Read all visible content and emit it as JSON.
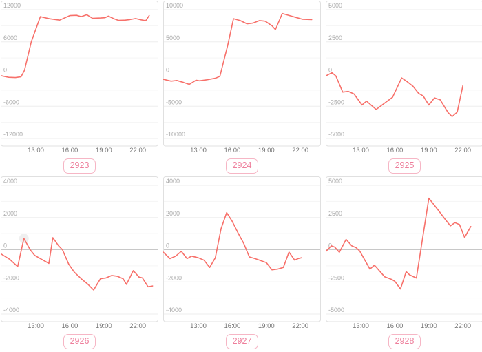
{
  "colors": {
    "line": "#f7706a",
    "panel_border": "#e0e0e0",
    "panel_bg": "#ffffff",
    "grid_major": "#ededed",
    "grid_minor": "#f5f5f5",
    "zero_line": "#c8c8c8",
    "y_label": "#a8a8a8",
    "x_label": "#757575",
    "badge_border": "#f6b6c5",
    "badge_text": "#ee7e9b",
    "marker_fill": "#dcdcdc"
  },
  "x_domain": [
    9.9,
    23.75
  ],
  "x_tick_hours": [
    13,
    16,
    19,
    22
  ],
  "x_ticks": [
    "13:00",
    "16:00",
    "19:00",
    "22:00"
  ],
  "chart_data": [
    {
      "type": "line",
      "badge": "2923",
      "ylim": [
        -12000,
        12000
      ],
      "yticks": [
        12000,
        6000,
        0,
        -6000,
        -12000
      ],
      "ytick_labels": [
        "12000",
        "6000",
        "0",
        "-6000",
        "-12000"
      ],
      "x_ticks": [
        "13:00",
        "16:00",
        "19:00",
        "22:00"
      ],
      "legend": "none",
      "grid": true,
      "points": [
        [
          9.9,
          -300
        ],
        [
          10.6,
          -600
        ],
        [
          11.2,
          -650
        ],
        [
          11.7,
          -500
        ],
        [
          12.0,
          700
        ],
        [
          12.6,
          6000
        ],
        [
          13.4,
          10700
        ],
        [
          14.2,
          10300
        ],
        [
          15.1,
          10050
        ],
        [
          16.0,
          10900
        ],
        [
          16.6,
          10950
        ],
        [
          17.0,
          10700
        ],
        [
          17.5,
          11050
        ],
        [
          18.0,
          10400
        ],
        [
          18.7,
          10450
        ],
        [
          19.1,
          10500
        ],
        [
          19.4,
          10800
        ],
        [
          19.9,
          10300
        ],
        [
          20.3,
          10000
        ],
        [
          20.9,
          10050
        ],
        [
          21.3,
          10150
        ],
        [
          21.8,
          10350
        ],
        [
          22.3,
          10100
        ],
        [
          22.7,
          9950
        ],
        [
          23.0,
          10900
        ]
      ]
    },
    {
      "type": "line",
      "badge": "2924",
      "ylim": [
        -10000,
        10000
      ],
      "yticks": [
        10000,
        5000,
        0,
        -5000,
        -10000
      ],
      "ytick_labels": [
        "10000",
        "5000",
        "0",
        "-5000",
        "-10000"
      ],
      "x_ticks": [
        "13:00",
        "16:00",
        "19:00",
        "22:00"
      ],
      "legend": "none",
      "grid": true,
      "points": [
        [
          9.9,
          -800
        ],
        [
          10.6,
          -1100
        ],
        [
          11.1,
          -1000
        ],
        [
          11.7,
          -1300
        ],
        [
          12.2,
          -1600
        ],
        [
          12.8,
          -950
        ],
        [
          13.1,
          -1050
        ],
        [
          13.7,
          -900
        ],
        [
          14.5,
          -650
        ],
        [
          14.9,
          -350
        ],
        [
          15.6,
          4500
        ],
        [
          16.1,
          8600
        ],
        [
          16.7,
          8300
        ],
        [
          17.3,
          7800
        ],
        [
          17.8,
          7900
        ],
        [
          18.4,
          8300
        ],
        [
          18.9,
          8200
        ],
        [
          19.5,
          7500
        ],
        [
          19.8,
          6900
        ],
        [
          20.4,
          9400
        ],
        [
          21.0,
          9100
        ],
        [
          21.6,
          8800
        ],
        [
          22.2,
          8500
        ],
        [
          23.0,
          8450
        ]
      ]
    },
    {
      "type": "line",
      "badge": "2925",
      "ylim": [
        -5000,
        5000
      ],
      "yticks": [
        5000,
        2500,
        0,
        -2500,
        -5000
      ],
      "ytick_labels": [
        "5000",
        "2500",
        "0",
        "-2500",
        "-5000"
      ],
      "x_ticks": [
        "13:00",
        "16:00",
        "19:00",
        "22:00"
      ],
      "legend": "none",
      "grid": true,
      "points": [
        [
          9.9,
          -150
        ],
        [
          10.45,
          100
        ],
        [
          10.8,
          -150
        ],
        [
          11.4,
          -1400
        ],
        [
          11.9,
          -1350
        ],
        [
          12.4,
          -1550
        ],
        [
          13.1,
          -2400
        ],
        [
          13.5,
          -2100
        ],
        [
          14.35,
          -2750
        ],
        [
          15.1,
          -2250
        ],
        [
          15.8,
          -1800
        ],
        [
          16.6,
          -300
        ],
        [
          17.1,
          -600
        ],
        [
          17.6,
          -950
        ],
        [
          18.1,
          -1500
        ],
        [
          18.5,
          -1700
        ],
        [
          19.0,
          -2400
        ],
        [
          19.5,
          -1850
        ],
        [
          20.0,
          -2000
        ],
        [
          20.7,
          -3000
        ],
        [
          21.05,
          -3300
        ],
        [
          21.5,
          -2950
        ],
        [
          22.0,
          -900
        ]
      ]
    },
    {
      "type": "line",
      "badge": "2926",
      "ylim": [
        -4000,
        4000
      ],
      "yticks": [
        4000,
        2000,
        0,
        -2000,
        -4000
      ],
      "ytick_labels": [
        "4000",
        "2000",
        "0",
        "-2000",
        "-4000"
      ],
      "x_ticks": [
        "13:00",
        "16:00",
        "19:00",
        "22:00"
      ],
      "legend": "none",
      "grid": true,
      "marker": {
        "t": 11.95,
        "v": 700
      },
      "points": [
        [
          9.9,
          -250
        ],
        [
          10.7,
          -600
        ],
        [
          11.4,
          -1050
        ],
        [
          11.95,
          700
        ],
        [
          12.5,
          0
        ],
        [
          12.9,
          -350
        ],
        [
          13.4,
          -550
        ],
        [
          13.9,
          -750
        ],
        [
          14.15,
          -850
        ],
        [
          14.5,
          750
        ],
        [
          15.0,
          250
        ],
        [
          15.35,
          0
        ],
        [
          15.9,
          -900
        ],
        [
          16.4,
          -1400
        ],
        [
          17.0,
          -1800
        ],
        [
          17.6,
          -2150
        ],
        [
          18.1,
          -2500
        ],
        [
          18.7,
          -1800
        ],
        [
          19.2,
          -1750
        ],
        [
          19.7,
          -1600
        ],
        [
          20.2,
          -1650
        ],
        [
          20.7,
          -1800
        ],
        [
          21.0,
          -2150
        ],
        [
          21.6,
          -1300
        ],
        [
          22.1,
          -1700
        ],
        [
          22.4,
          -1750
        ],
        [
          22.9,
          -2300
        ],
        [
          23.3,
          -2250
        ]
      ]
    },
    {
      "type": "line",
      "badge": "2927",
      "ylim": [
        -4000,
        4000
      ],
      "yticks": [
        4000,
        2000,
        0,
        -2000,
        -4000
      ],
      "ytick_labels": [
        "4000",
        "2000",
        "0",
        "-2000",
        "-4000"
      ],
      "x_ticks": [
        "13:00",
        "16:00",
        "19:00",
        "22:00"
      ],
      "legend": "none",
      "grid": true,
      "points": [
        [
          9.9,
          -150
        ],
        [
          10.5,
          -550
        ],
        [
          11.0,
          -400
        ],
        [
          11.5,
          -100
        ],
        [
          12.0,
          -550
        ],
        [
          12.4,
          -400
        ],
        [
          13.0,
          -500
        ],
        [
          13.5,
          -650
        ],
        [
          14.0,
          -1100
        ],
        [
          14.5,
          -500
        ],
        [
          15.0,
          1300
        ],
        [
          15.5,
          2300
        ],
        [
          16.0,
          1750
        ],
        [
          16.5,
          1050
        ],
        [
          17.0,
          400
        ],
        [
          17.5,
          -450
        ],
        [
          18.0,
          -550
        ],
        [
          18.6,
          -700
        ],
        [
          19.0,
          -800
        ],
        [
          19.5,
          -1250
        ],
        [
          20.0,
          -1200
        ],
        [
          20.5,
          -1100
        ],
        [
          21.0,
          -150
        ],
        [
          21.5,
          -650
        ],
        [
          21.8,
          -550
        ],
        [
          22.1,
          -500
        ]
      ]
    },
    {
      "type": "line",
      "badge": "2928",
      "ylim": [
        -5000,
        5000
      ],
      "yticks": [
        5000,
        2500,
        0,
        -2500,
        -5000
      ],
      "ytick_labels": [
        "5000",
        "2500",
        "0",
        "-2500",
        "-5000"
      ],
      "x_ticks": [
        "13:00",
        "16:00",
        "19:00",
        "22:00"
      ],
      "legend": "none",
      "grid": true,
      "points": [
        [
          9.9,
          -150
        ],
        [
          10.4,
          300
        ],
        [
          10.7,
          200
        ],
        [
          11.1,
          -200
        ],
        [
          11.7,
          800
        ],
        [
          12.2,
          300
        ],
        [
          12.6,
          150
        ],
        [
          12.9,
          -100
        ],
        [
          13.8,
          -1500
        ],
        [
          14.2,
          -1200
        ],
        [
          15.1,
          -2100
        ],
        [
          15.7,
          -2300
        ],
        [
          16.0,
          -2450
        ],
        [
          16.5,
          -3050
        ],
        [
          17.0,
          -1700
        ],
        [
          17.3,
          -1950
        ],
        [
          17.9,
          -2200
        ],
        [
          19.0,
          4000
        ],
        [
          19.8,
          3100
        ],
        [
          20.4,
          2400
        ],
        [
          20.9,
          1850
        ],
        [
          21.3,
          2100
        ],
        [
          21.7,
          1950
        ],
        [
          22.15,
          950
        ],
        [
          22.7,
          1800
        ]
      ]
    }
  ]
}
